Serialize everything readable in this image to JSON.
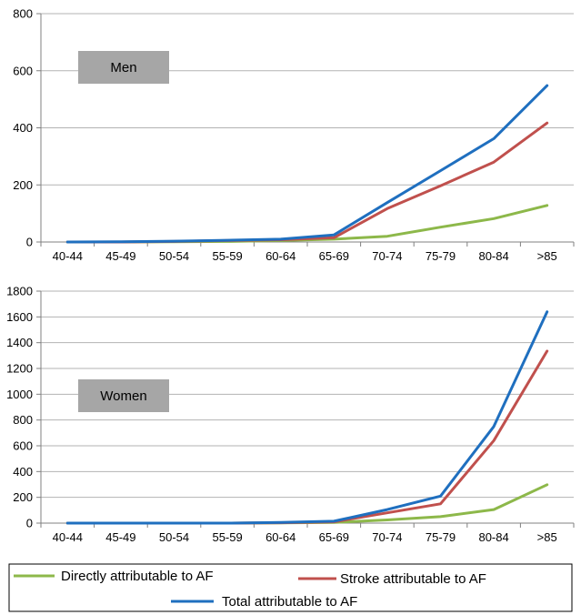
{
  "chart_data": [
    {
      "type": "line",
      "title": "Men",
      "categories": [
        "40-44",
        "45-49",
        "50-54",
        "55-59",
        "60-64",
        "65-69",
        "70-74",
        "75-79",
        "80-84",
        ">85"
      ],
      "ylim": [
        0,
        800
      ],
      "yticks": [
        0,
        200,
        400,
        600,
        800
      ],
      "grid": true,
      "series": [
        {
          "name": "Directly attributable to AF",
          "color": "#8db84a",
          "values": [
            0,
            0,
            1,
            2,
            5,
            10,
            20,
            52,
            82,
            128
          ]
        },
        {
          "name": "Stroke attributable to AF",
          "color": "#c0504d",
          "values": [
            0,
            0,
            2,
            5,
            8,
            15,
            117,
            197,
            280,
            417
          ]
        },
        {
          "name": "Total attributable to AF",
          "color": "#1f6fbf",
          "values": [
            0,
            1,
            3,
            6,
            10,
            25,
            138,
            250,
            362,
            548
          ]
        }
      ]
    },
    {
      "type": "line",
      "title": "Women",
      "categories": [
        "40-44",
        "45-49",
        "50-54",
        "55-59",
        "60-64",
        "65-69",
        "70-74",
        "75-79",
        "80-84",
        ">85"
      ],
      "ylim": [
        0,
        1800
      ],
      "yticks": [
        0,
        200,
        400,
        600,
        800,
        1000,
        1200,
        1400,
        1600,
        1800
      ],
      "grid": true,
      "series": [
        {
          "name": "Directly attributable to AF",
          "color": "#8db84a",
          "values": [
            0,
            0,
            0,
            0,
            2,
            5,
            25,
            50,
            105,
            298
          ]
        },
        {
          "name": "Stroke attributable to AF",
          "color": "#c0504d",
          "values": [
            0,
            0,
            0,
            0,
            3,
            10,
            80,
            150,
            640,
            1335
          ]
        },
        {
          "name": "Total attributable to AF",
          "color": "#1f6fbf",
          "values": [
            0,
            0,
            0,
            0,
            5,
            15,
            105,
            210,
            750,
            1640
          ]
        }
      ]
    }
  ],
  "legend": {
    "position": "bottom",
    "items": [
      {
        "label": "Directly attributable to AF",
        "color": "#8db84a"
      },
      {
        "label": "Stroke attributable to AF",
        "color": "#c0504d"
      },
      {
        "label": "Total attributable to AF",
        "color": "#1f6fbf"
      }
    ]
  }
}
